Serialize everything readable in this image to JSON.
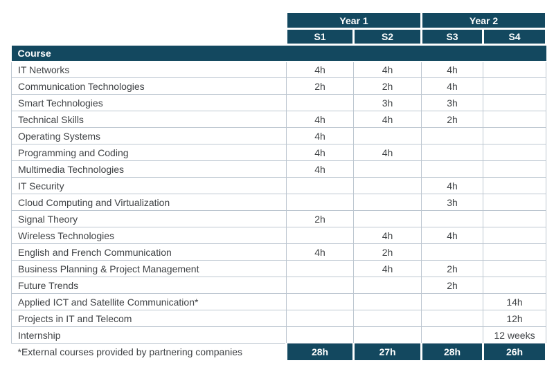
{
  "colors": {
    "navy": "#13485f",
    "border": "#bcc6d0",
    "text": "#3f4245"
  },
  "table": {
    "year_headers": [
      "Year 1",
      "Year 2"
    ],
    "semester_headers": [
      "S1",
      "S2",
      "S3",
      "S4"
    ],
    "course_header": "Course",
    "rows": [
      {
        "name": "IT Networks",
        "cells": [
          "4h",
          "4h",
          "4h",
          ""
        ]
      },
      {
        "name": "Communication Technologies",
        "cells": [
          "2h",
          "2h",
          "4h",
          ""
        ]
      },
      {
        "name": "Smart Technologies",
        "cells": [
          "",
          "3h",
          "3h",
          ""
        ]
      },
      {
        "name": "Technical Skills",
        "cells": [
          "4h",
          "4h",
          "2h",
          ""
        ]
      },
      {
        "name": "Operating Systems",
        "cells": [
          "4h",
          "",
          "",
          ""
        ]
      },
      {
        "name": "Programming and Coding",
        "cells": [
          "4h",
          "4h",
          "",
          ""
        ]
      },
      {
        "name": "Multimedia Technologies",
        "cells": [
          "4h",
          "",
          "",
          ""
        ]
      },
      {
        "name": "IT Security",
        "cells": [
          "",
          "",
          "4h",
          ""
        ]
      },
      {
        "name": "Cloud Computing and Virtualization",
        "cells": [
          "",
          "",
          "3h",
          ""
        ]
      },
      {
        "name": "Signal Theory",
        "cells": [
          "2h",
          "",
          "",
          ""
        ]
      },
      {
        "name": "Wireless Technologies",
        "cells": [
          "",
          "4h",
          "4h",
          ""
        ]
      },
      {
        "name": "English and French Communication",
        "cells": [
          "4h",
          "2h",
          "",
          ""
        ]
      },
      {
        "name": "Business Planning & Project Management",
        "cells": [
          "",
          "4h",
          "2h",
          ""
        ]
      },
      {
        "name": "Future Trends",
        "cells": [
          "",
          "",
          "2h",
          ""
        ]
      },
      {
        "name": "Applied ICT and Satellite Communication*",
        "cells": [
          "",
          "",
          "",
          "14h"
        ]
      },
      {
        "name": "Projects in IT and Telecom",
        "cells": [
          "",
          "",
          "",
          "12h"
        ]
      },
      {
        "name": "Internship",
        "cells": [
          "",
          "",
          "",
          "12 weeks"
        ]
      }
    ],
    "footer": {
      "note": "*External courses provided by partnering companies",
      "totals": [
        "28h",
        "27h",
        "28h",
        "26h"
      ]
    }
  }
}
